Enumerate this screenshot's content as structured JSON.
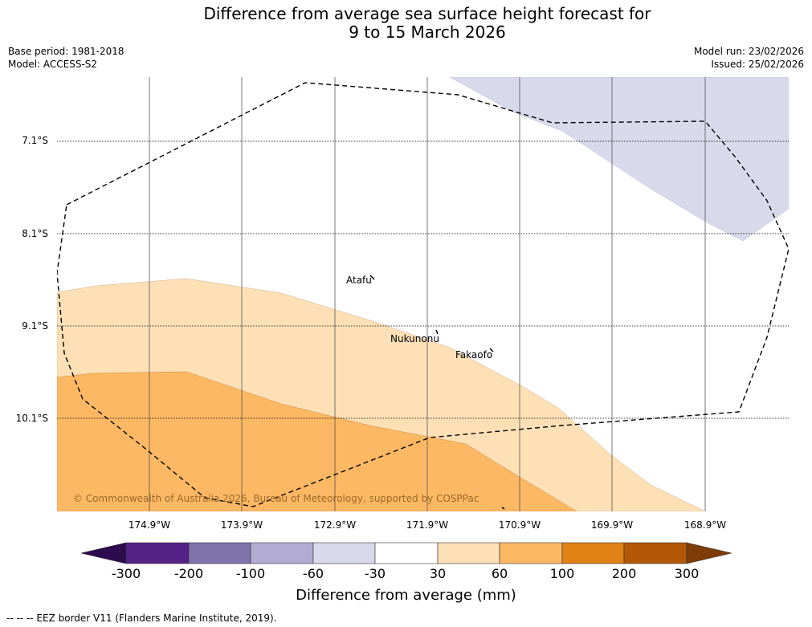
{
  "title_line1": "Difference from average sea surface height forecast for",
  "title_line2": "9 to 15 March 2026",
  "base_period": "Base period: 1981-2018",
  "model": "Model: ACCESS-S2",
  "model_run": "Model run: 23/02/2026",
  "issued": "Issued: 25/02/2026",
  "lat_labels": [
    "7.1°S",
    "8.1°S",
    "9.1°S",
    "10.1°S"
  ],
  "lon_labels": [
    "174.9°W",
    "173.9°W",
    "172.9°W",
    "171.9°W",
    "170.9°W",
    "169.9°W",
    "168.9°W"
  ],
  "places": {
    "atafu": "Atafu",
    "nukunonu": "Nukunonu",
    "fakaofo": "Fakaofo"
  },
  "copyright": "© Commonwealth of Australia 2026, Bureau of Meteorology, supported by COSPPac",
  "colorbar": {
    "label": "Difference from average (mm)",
    "ticks": [
      "-300",
      "-200",
      "-100",
      "-60",
      "-30",
      "30",
      "60",
      "100",
      "200",
      "300"
    ],
    "colors": {
      "under": "#2d0b4e",
      "c1": "#542286",
      "c2": "#8073ac",
      "c3": "#b2abd2",
      "c4": "#d8daeb",
      "c5": "#ffffff",
      "c6": "#fee0b6",
      "c7": "#fdb863",
      "c8": "#e08214",
      "c9": "#b35806",
      "over": "#7f3b08"
    }
  },
  "footnote": "-- -- -- EEZ border V11 (Flanders Marine Institute, 2019)."
}
